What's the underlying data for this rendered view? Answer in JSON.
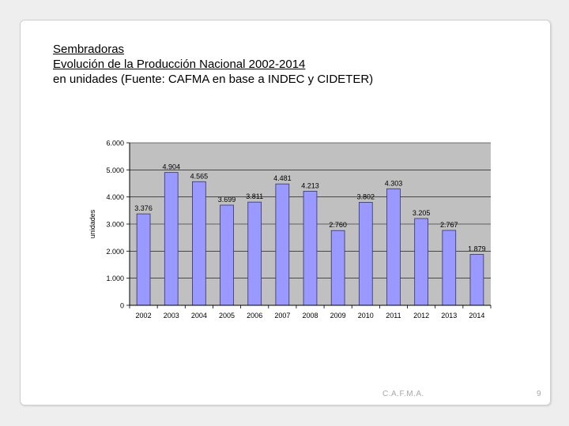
{
  "slide": {
    "title": "Sembradoras",
    "subtitle": "Evolución de la Producción Nacional 2002-2014",
    "source": "en unidades (Fuente: CAFMA en base a INDEC y CIDETER)",
    "footer": "C.A.F.M.A.",
    "page_number": "9"
  },
  "colors": {
    "bar_fill": "#9999ff",
    "bar_stroke": "#333366",
    "plot_background": "#c0c0c0"
  },
  "chart_data": {
    "type": "bar",
    "categories": [
      "2002",
      "2003",
      "2004",
      "2005",
      "2006",
      "2007",
      "2008",
      "2009",
      "2010",
      "2011",
      "2012",
      "2013",
      "2014"
    ],
    "values": [
      3376,
      4904,
      4565,
      3699,
      3811,
      4481,
      4213,
      2760,
      3802,
      4303,
      3205,
      2767,
      1879
    ],
    "data_labels": [
      "3.376",
      "4.904",
      "4.565",
      "3.699",
      "3.811",
      "4.481",
      "4.213",
      "2.760",
      "3.802",
      "4.303",
      "3.205",
      "2.767",
      "1.879"
    ],
    "ylabel": "unidades",
    "xlabel": "",
    "ylim": [
      0,
      6000
    ],
    "y_ticks": [
      0,
      1000,
      2000,
      3000,
      4000,
      5000,
      6000
    ],
    "y_tick_labels": [
      "0",
      "1.000",
      "2.000",
      "3.000",
      "4.000",
      "5.000",
      "6.000"
    ],
    "grid": true,
    "legend": "none"
  }
}
